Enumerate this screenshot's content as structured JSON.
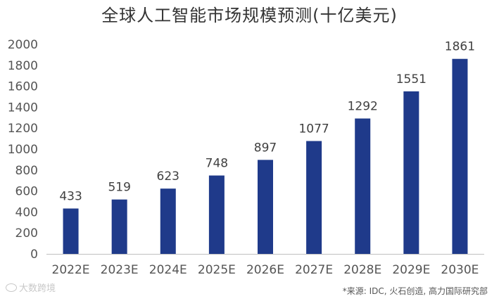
{
  "chart_data": {
    "type": "bar",
    "title": "全球人工智能市场规模预测(十亿美元)",
    "categories": [
      "2022E",
      "2023E",
      "2024E",
      "2025E",
      "2026E",
      "2027E",
      "2028E",
      "2029E",
      "2030E"
    ],
    "values": [
      433,
      519,
      623,
      748,
      897,
      1077,
      1292,
      1551,
      1861
    ],
    "ylim": [
      0,
      2000
    ],
    "yticks": [
      0,
      200,
      400,
      600,
      800,
      1000,
      1200,
      1400,
      1600,
      1800,
      2000
    ],
    "grid": false,
    "bar_color": "#1f3a8a"
  },
  "source": "*来源: IDC, 火石创造, 高力国际研究部",
  "watermark": "大数跨境"
}
